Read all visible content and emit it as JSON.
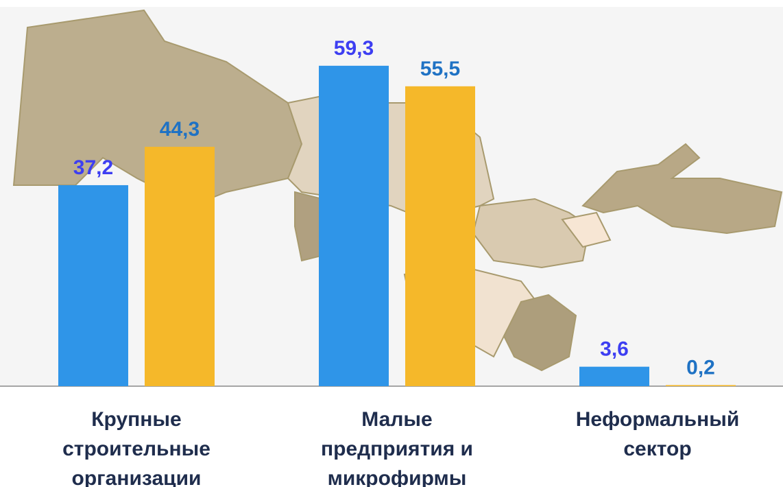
{
  "chart_data": {
    "type": "bar",
    "categories": [
      "Крупные строительные организации",
      "Малые предприятия и микрофирмы",
      "Неформальный сектор"
    ],
    "series": [
      {
        "color": "#2f95e8",
        "label_color": "#3d3ef2",
        "values": [
          37.2,
          59.3,
          3.6
        ],
        "value_labels": [
          "37,2",
          "59,3",
          "3,6"
        ]
      },
      {
        "color": "#f5b82a",
        "label_color": "#1f72c4",
        "values": [
          44.3,
          55.5,
          0.2
        ],
        "value_labels": [
          "44,3",
          "55,5",
          "0,2"
        ]
      }
    ],
    "ylim": [
      0,
      70.2
    ]
  }
}
